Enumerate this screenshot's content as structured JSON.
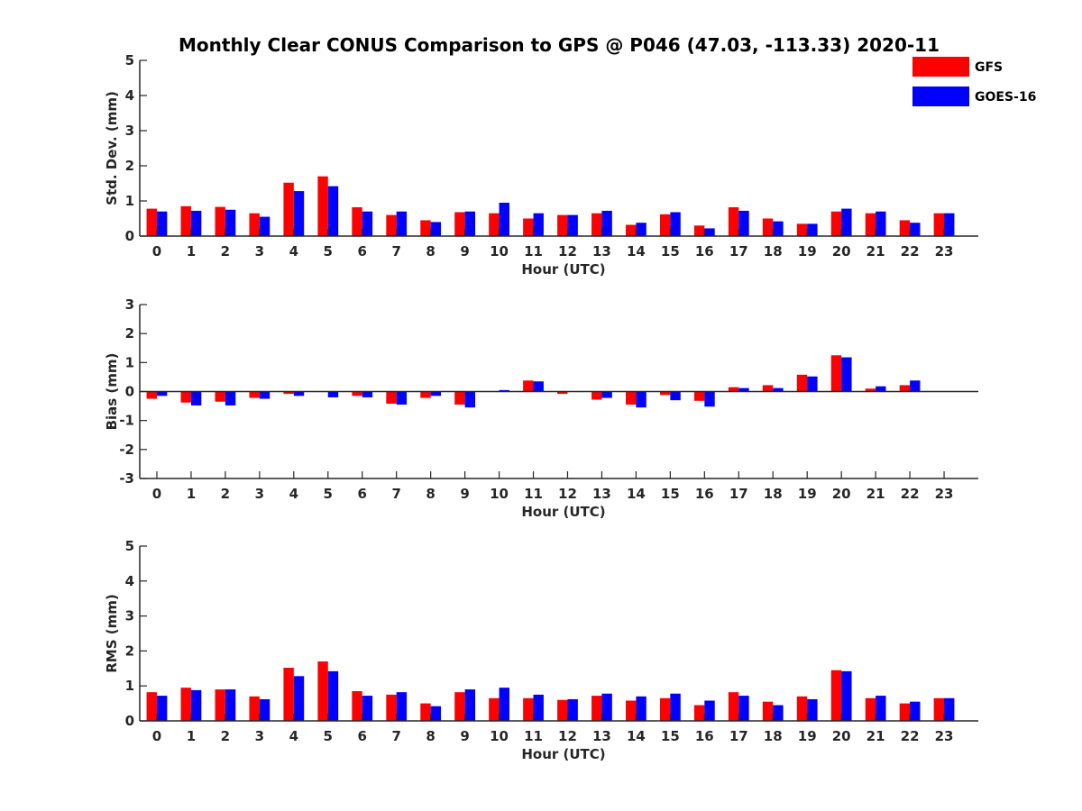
{
  "chart_data": {
    "title": "Monthly Clear CONUS Comparison to GPS @ P046 (47.03, -113.33) 2020-11",
    "type": "bar",
    "legend": {
      "position": "top-right",
      "entries": [
        {
          "name": "GFS",
          "color": "#ff0000"
        },
        {
          "name": "GOES-16",
          "color": "#0000ff"
        }
      ]
    },
    "panels": [
      {
        "ylabel": "Std. Dev. (mm)",
        "xlabel": "Hour (UTC)",
        "ylim": [
          0,
          5
        ],
        "yticks": [
          0,
          1,
          2,
          3,
          4,
          5
        ],
        "categories": [
          "0",
          "1",
          "2",
          "3",
          "4",
          "5",
          "6",
          "7",
          "8",
          "9",
          "10",
          "11",
          "12",
          "13",
          "14",
          "15",
          "16",
          "17",
          "18",
          "19",
          "20",
          "21",
          "22",
          "23"
        ],
        "series": [
          {
            "name": "GFS",
            "values": [
              0.78,
              0.85,
              0.83,
              0.65,
              1.52,
              1.7,
              0.82,
              0.6,
              0.45,
              0.68,
              0.65,
              0.5,
              0.6,
              0.65,
              0.32,
              0.62,
              0.3,
              0.82,
              0.5,
              0.35,
              0.7,
              0.65,
              0.45,
              0.65
            ]
          },
          {
            "name": "GOES-16",
            "values": [
              0.7,
              0.72,
              0.75,
              0.55,
              1.28,
              1.42,
              0.7,
              0.7,
              0.4,
              0.7,
              0.95,
              0.65,
              0.6,
              0.72,
              0.38,
              0.68,
              0.22,
              0.72,
              0.42,
              0.35,
              0.78,
              0.7,
              0.38,
              0.65
            ]
          }
        ]
      },
      {
        "ylabel": "Bias (mm)",
        "xlabel": "Hour (UTC)",
        "ylim": [
          -3,
          3
        ],
        "yticks": [
          -3,
          -2,
          -1,
          0,
          1,
          2,
          3
        ],
        "categories": [
          "0",
          "1",
          "2",
          "3",
          "4",
          "5",
          "6",
          "7",
          "8",
          "9",
          "10",
          "11",
          "12",
          "13",
          "14",
          "15",
          "16",
          "17",
          "18",
          "19",
          "20",
          "21",
          "22",
          "23"
        ],
        "series": [
          {
            "name": "GFS",
            "values": [
              -0.25,
              -0.38,
              -0.35,
              -0.22,
              -0.08,
              0.0,
              -0.15,
              -0.42,
              -0.22,
              -0.45,
              0.0,
              0.38,
              -0.08,
              -0.28,
              -0.45,
              -0.12,
              -0.32,
              0.15,
              0.22,
              0.58,
              1.25,
              0.1,
              0.22,
              0.0
            ]
          },
          {
            "name": "GOES-16",
            "values": [
              -0.15,
              -0.48,
              -0.48,
              -0.25,
              -0.15,
              -0.2,
              -0.2,
              -0.45,
              -0.15,
              -0.55,
              0.05,
              0.35,
              0.0,
              -0.22,
              -0.55,
              -0.3,
              -0.52,
              0.12,
              0.12,
              0.52,
              1.18,
              0.18,
              0.38,
              0.0
            ]
          }
        ]
      },
      {
        "ylabel": "RMS (mm)",
        "xlabel": "Hour (UTC)",
        "ylim": [
          0,
          5
        ],
        "yticks": [
          0,
          1,
          2,
          3,
          4,
          5
        ],
        "categories": [
          "0",
          "1",
          "2",
          "3",
          "4",
          "5",
          "6",
          "7",
          "8",
          "9",
          "10",
          "11",
          "12",
          "13",
          "14",
          "15",
          "16",
          "17",
          "18",
          "19",
          "20",
          "21",
          "22",
          "23"
        ],
        "series": [
          {
            "name": "GFS",
            "values": [
              0.82,
              0.95,
              0.9,
              0.7,
              1.52,
              1.7,
              0.85,
              0.75,
              0.5,
              0.82,
              0.65,
              0.65,
              0.6,
              0.72,
              0.58,
              0.65,
              0.45,
              0.82,
              0.55,
              0.7,
              1.45,
              0.65,
              0.5,
              0.65
            ]
          },
          {
            "name": "GOES-16",
            "values": [
              0.72,
              0.88,
              0.9,
              0.62,
              1.28,
              1.42,
              0.72,
              0.82,
              0.42,
              0.9,
              0.95,
              0.75,
              0.62,
              0.78,
              0.7,
              0.78,
              0.58,
              0.72,
              0.45,
              0.62,
              1.42,
              0.72,
              0.55,
              0.65
            ]
          }
        ]
      }
    ]
  }
}
